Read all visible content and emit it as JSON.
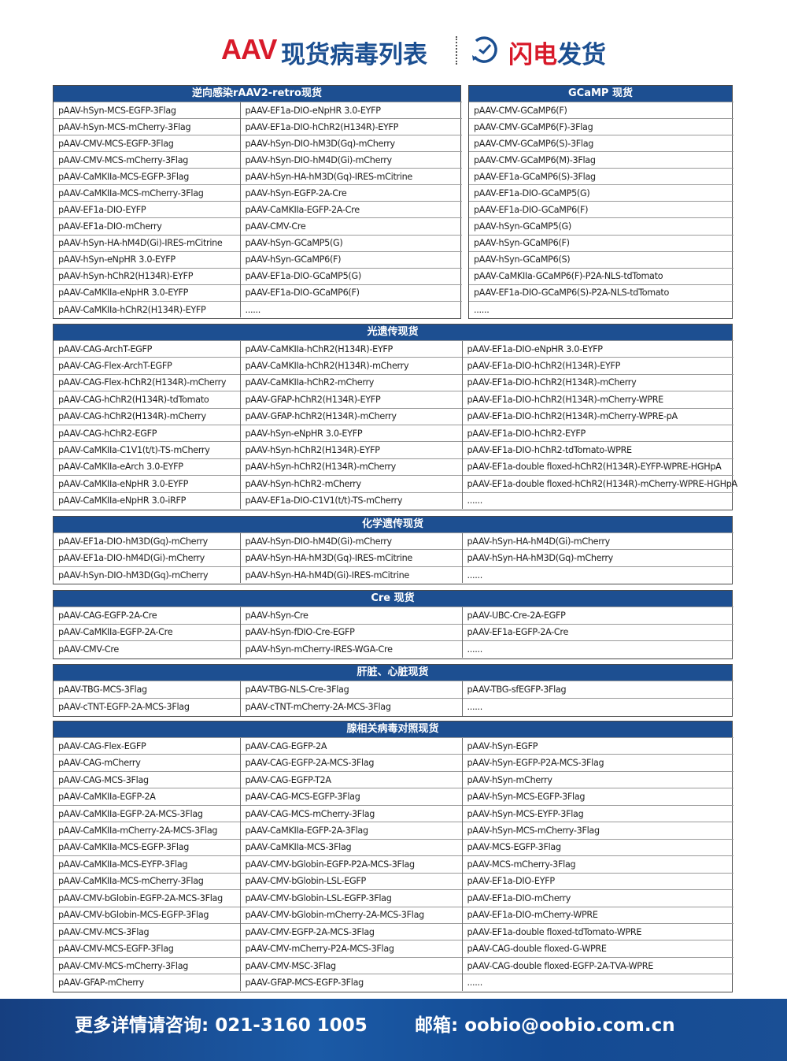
{
  "title": {
    "aav": "AAV",
    "list": "现货病毒列表",
    "flash_red": "闪电",
    "flash_blue": "发货",
    "icon": "clock-icon"
  },
  "colors": {
    "header_blue": "#1d4f91",
    "title_red": "#d81a2a"
  },
  "sections": [
    {
      "header": "逆向感染rAAV2-retro现货",
      "rows": [
        [
          "pAAV-hSyn-MCS-EGFP-3Flag",
          "pAAV-EF1a-DIO-eNpHR 3.0-EYFP"
        ],
        [
          "pAAV-hSyn-MCS-mCherry-3Flag",
          "pAAV-EF1a-DIO-hChR2(H134R)-EYFP"
        ],
        [
          "pAAV-CMV-MCS-EGFP-3Flag",
          "pAAV-hSyn-DIO-hM3D(Gq)-mCherry"
        ],
        [
          "pAAV-CMV-MCS-mCherry-3Flag",
          "pAAV-hSyn-DIO-hM4D(Gi)-mCherry"
        ],
        [
          "pAAV-CaMKIIa-MCS-EGFP-3Flag",
          "pAAV-hSyn-HA-hM3D(Gq)-IRES-mCitrine"
        ],
        [
          "pAAV-CaMKIIa-MCS-mCherry-3Flag",
          "pAAV-hSyn-EGFP-2A-Cre"
        ],
        [
          "pAAV-EF1a-DIO-EYFP",
          "pAAV-CaMKIIa-EGFP-2A-Cre"
        ],
        [
          "pAAV-EF1a-DIO-mCherry",
          "pAAV-CMV-Cre"
        ],
        [
          "pAAV-hSyn-HA-hM4D(Gi)-IRES-mCitrine",
          "pAAV-hSyn-GCaMP5(G)"
        ],
        [
          "pAAV-hSyn-eNpHR 3.0-EYFP",
          "pAAV-hSyn-GCaMP6(F)"
        ],
        [
          "pAAV-hSyn-hChR2(H134R)-EYFP",
          "pAAV-EF1a-DIO-GCaMP5(G)"
        ],
        [
          "pAAV-CaMKIIa-eNpHR 3.0-EYFP",
          "pAAV-EF1a-DIO-GCaMP6(F)"
        ],
        [
          "pAAV-CaMKIIa-hChR2(H134R)-EYFP",
          "......"
        ]
      ]
    },
    {
      "header": "GCaMP 现货",
      "rows": [
        [
          "pAAV-CMV-GCaMP6(F)"
        ],
        [
          "pAAV-CMV-GCaMP6(F)-3Flag"
        ],
        [
          "pAAV-CMV-GCaMP6(S)-3Flag"
        ],
        [
          "pAAV-CMV-GCaMP6(M)-3Flag"
        ],
        [
          "pAAV-EF1a-GCaMP6(S)-3Flag"
        ],
        [
          "pAAV-EF1a-DIO-GCaMP5(G)"
        ],
        [
          "pAAV-EF1a-DIO-GCaMP6(F)"
        ],
        [
          "pAAV-hSyn-GCaMP5(G)"
        ],
        [
          "pAAV-hSyn-GCaMP6(F)"
        ],
        [
          "pAAV-hSyn-GCaMP6(S)"
        ],
        [
          "pAAV-CaMKIIa-GCaMP6(F)-P2A-NLS-tdTomato"
        ],
        [
          "pAAV-EF1a-DIO-GCaMP6(S)-P2A-NLS-tdTomato"
        ],
        [
          "......"
        ]
      ]
    },
    {
      "header": "光遗传现货",
      "rows": [
        [
          "pAAV-CAG-ArchT-EGFP",
          "pAAV-CaMKIIa-hChR2(H134R)-EYFP",
          "pAAV-EF1a-DIO-eNpHR 3.0-EYFP"
        ],
        [
          "pAAV-CAG-Flex-ArchT-EGFP",
          "pAAV-CaMKIIa-hChR2(H134R)-mCherry",
          "pAAV-EF1a-DIO-hChR2(H134R)-EYFP"
        ],
        [
          "pAAV-CAG-Flex-hChR2(H134R)-mCherry",
          "pAAV-CaMKIIa-hChR2-mCherry",
          "pAAV-EF1a-DIO-hChR2(H134R)-mCherry"
        ],
        [
          "pAAV-CAG-hChR2(H134R)-tdTomato",
          "pAAV-GFAP-hChR2(H134R)-EYFP",
          "pAAV-EF1a-DIO-hChR2(H134R)-mCherry-WPRE"
        ],
        [
          "pAAV-CAG-hChR2(H134R)-mCherry",
          "pAAV-GFAP-hChR2(H134R)-mCherry",
          "pAAV-EF1a-DIO-hChR2(H134R)-mCherry-WPRE-pA"
        ],
        [
          "pAAV-CAG-hChR2-EGFP",
          "pAAV-hSyn-eNpHR 3.0-EYFP",
          "pAAV-EF1a-DIO-hChR2-EYFP"
        ],
        [
          "pAAV-CaMKIIa-C1V1(t/t)-TS-mCherry",
          "pAAV-hSyn-hChR2(H134R)-EYFP",
          "pAAV-EF1a-DIO-hChR2-tdTomato-WPRE"
        ],
        [
          "pAAV-CaMKIIa-eArch 3.0-EYFP",
          "pAAV-hSyn-hChR2(H134R)-mCherry",
          "pAAV-EF1a-double floxed-hChR2(H134R)-EYFP-WPRE-HGHpA"
        ],
        [
          "pAAV-CaMKIIa-eNpHR 3.0-EYFP",
          "pAAV-hSyn-hChR2-mCherry",
          "pAAV-EF1a-double floxed-hChR2(H134R)-mCherry-WPRE-HGHpA"
        ],
        [
          "pAAV-CaMKIIa-eNpHR 3.0-iRFP",
          "pAAV-EF1a-DIO-C1V1(t/t)-TS-mCherry",
          "......"
        ]
      ]
    },
    {
      "header": "化学遗传现货",
      "rows": [
        [
          "pAAV-EF1a-DIO-hM3D(Gq)-mCherry",
          "pAAV-hSyn-DIO-hM4D(Gi)-mCherry",
          "pAAV-hSyn-HA-hM4D(Gi)-mCherry"
        ],
        [
          "pAAV-EF1a-DIO-hM4D(Gi)-mCherry",
          "pAAV-hSyn-HA-hM3D(Gq)-IRES-mCitrine",
          "pAAV-hSyn-HA-hM3D(Gq)-mCherry"
        ],
        [
          "pAAV-hSyn-DIO-hM3D(Gq)-mCherry",
          "pAAV-hSyn-HA-hM4D(Gi)-IRES-mCitrine",
          "......"
        ]
      ]
    },
    {
      "header": "Cre 现货",
      "rows": [
        [
          "pAAV-CAG-EGFP-2A-Cre",
          "pAAV-hSyn-Cre",
          "pAAV-UBC-Cre-2A-EGFP"
        ],
        [
          "pAAV-CaMKIIa-EGFP-2A-Cre",
          "pAAV-hSyn-fDIO-Cre-EGFP",
          "pAAV-EF1a-EGFP-2A-Cre"
        ],
        [
          "pAAV-CMV-Cre",
          "pAAV-hSyn-mCherry-IRES-WGA-Cre",
          "......"
        ]
      ]
    },
    {
      "header": "肝脏、心脏现货",
      "rows": [
        [
          "pAAV-TBG-MCS-3Flag",
          "pAAV-TBG-NLS-Cre-3Flag",
          "pAAV-TBG-sfEGFP-3Flag"
        ],
        [
          "pAAV-cTNT-EGFP-2A-MCS-3Flag",
          "pAAV-cTNT-mCherry-2A-MCS-3Flag",
          "......"
        ]
      ]
    },
    {
      "header": "腺相关病毒对照现货",
      "rows": [
        [
          "pAAV-CAG-Flex-EGFP",
          "pAAV-CAG-EGFP-2A",
          "pAAV-hSyn-EGFP"
        ],
        [
          "pAAV-CAG-mCherry",
          "pAAV-CAG-EGFP-2A-MCS-3Flag",
          "pAAV-hSyn-EGFP-P2A-MCS-3Flag"
        ],
        [
          "pAAV-CAG-MCS-3Flag",
          "pAAV-CAG-EGFP-T2A",
          "pAAV-hSyn-mCherry"
        ],
        [
          "pAAV-CaMKIIa-EGFP-2A",
          "pAAV-CAG-MCS-EGFP-3Flag",
          "pAAV-hSyn-MCS-EGFP-3Flag"
        ],
        [
          "pAAV-CaMKIIa-EGFP-2A-MCS-3Flag",
          "pAAV-CAG-MCS-mCherry-3Flag",
          "pAAV-hSyn-MCS-EYFP-3Flag"
        ],
        [
          "pAAV-CaMKIIa-mCherry-2A-MCS-3Flag",
          "pAAV-CaMKIIa-EGFP-2A-3Flag",
          "pAAV-hSyn-MCS-mCherry-3Flag"
        ],
        [
          "pAAV-CaMKIIa-MCS-EGFP-3Flag",
          "pAAV-CaMKIIa-MCS-3Flag",
          "pAAV-MCS-EGFP-3Flag"
        ],
        [
          "pAAV-CaMKIIa-MCS-EYFP-3Flag",
          "pAAV-CMV-bGlobin-EGFP-P2A-MCS-3Flag",
          "pAAV-MCS-mCherry-3Flag"
        ],
        [
          "pAAV-CaMKIIa-MCS-mCherry-3Flag",
          "pAAV-CMV-bGlobin-LSL-EGFP",
          "pAAV-EF1a-DIO-EYFP"
        ],
        [
          "pAAV-CMV-bGlobin-EGFP-2A-MCS-3Flag",
          "pAAV-CMV-bGlobin-LSL-EGFP-3Flag",
          "pAAV-EF1a-DIO-mCherry"
        ],
        [
          "pAAV-CMV-bGlobin-MCS-EGFP-3Flag",
          "pAAV-CMV-bGlobin-mCherry-2A-MCS-3Flag",
          "pAAV-EF1a-DIO-mCherry-WPRE"
        ],
        [
          "pAAV-CMV-MCS-3Flag",
          "pAAV-CMV-EGFP-2A-MCS-3Flag",
          "pAAV-EF1a-double floxed-tdTomato-WPRE"
        ],
        [
          "pAAV-CMV-MCS-EGFP-3Flag",
          "pAAV-CMV-mCherry-P2A-MCS-3Flag",
          "pAAV-CAG-double floxed-G-WPRE"
        ],
        [
          "pAAV-CMV-MCS-mCherry-3Flag",
          "pAAV-CMV-MSC-3Flag",
          "pAAV-CAG-double floxed-EGFP-2A-TVA-WPRE"
        ],
        [
          "pAAV-GFAP-mCherry",
          "pAAV-GFAP-MCS-EGFP-3Flag",
          "......"
        ]
      ]
    }
  ],
  "footer": {
    "phone": "更多详情请咨询: 021-3160 1005",
    "email": "邮箱: oobio@oobio.com.cn"
  }
}
